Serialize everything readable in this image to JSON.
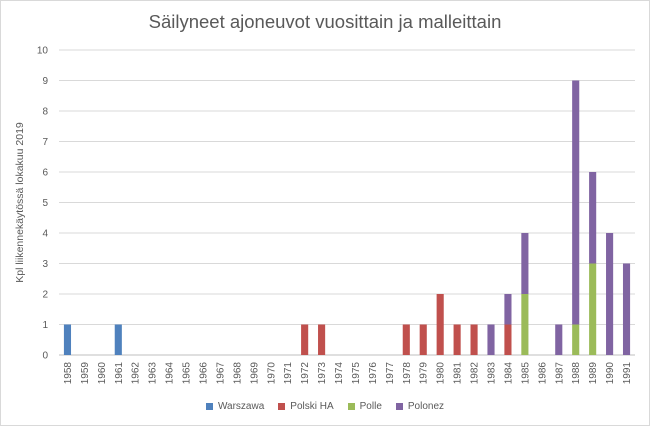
{
  "chart_data": {
    "type": "bar",
    "stacked": true,
    "title": "Säilyneet ajoneuvot vuosittain ja malleittain",
    "xlabel": "",
    "ylabel": "Kpl liikennekäytössä lokakuu 2019",
    "ylim": [
      0,
      10
    ],
    "yticks": [
      "0",
      "1",
      "2",
      "3",
      "4",
      "5",
      "6",
      "7",
      "8",
      "9",
      "10"
    ],
    "grid": true,
    "legend_position": "bottom",
    "categories": [
      "1958",
      "1959",
      "1960",
      "1961",
      "1962",
      "1963",
      "1964",
      "1965",
      "1966",
      "1967",
      "1968",
      "1969",
      "1970",
      "1971",
      "1972",
      "1973",
      "1974",
      "1975",
      "1976",
      "1977",
      "1978",
      "1979",
      "1980",
      "1981",
      "1982",
      "1983",
      "1984",
      "1985",
      "1986",
      "1987",
      "1988",
      "1989",
      "1990",
      "1991"
    ],
    "series": [
      {
        "name": "Warszawa",
        "color": "#4f81bd",
        "values": [
          1,
          0,
          0,
          1,
          0,
          0,
          0,
          0,
          0,
          0,
          0,
          0,
          0,
          0,
          0,
          0,
          0,
          0,
          0,
          0,
          0,
          0,
          0,
          0,
          0,
          0,
          0,
          0,
          0,
          0,
          0,
          0,
          0,
          0
        ]
      },
      {
        "name": "Polski HA",
        "color": "#c0504d",
        "values": [
          0,
          0,
          0,
          0,
          0,
          0,
          0,
          0,
          0,
          0,
          0,
          0,
          0,
          0,
          1,
          1,
          0,
          0,
          0,
          0,
          1,
          1,
          2,
          1,
          1,
          0,
          1,
          0,
          0,
          0,
          0,
          0,
          0,
          0
        ]
      },
      {
        "name": "Polle",
        "color": "#9bbb59",
        "values": [
          0,
          0,
          0,
          0,
          0,
          0,
          0,
          0,
          0,
          0,
          0,
          0,
          0,
          0,
          0,
          0,
          0,
          0,
          0,
          0,
          0,
          0,
          0,
          0,
          0,
          0,
          0,
          2,
          0,
          0,
          1,
          3,
          0,
          0
        ]
      },
      {
        "name": "Polonez",
        "color": "#8064a2",
        "values": [
          0,
          0,
          0,
          0,
          0,
          0,
          0,
          0,
          0,
          0,
          0,
          0,
          0,
          0,
          0,
          0,
          0,
          0,
          0,
          0,
          0,
          0,
          0,
          0,
          0,
          1,
          1,
          2,
          0,
          1,
          8,
          3,
          4,
          3
        ]
      }
    ]
  }
}
